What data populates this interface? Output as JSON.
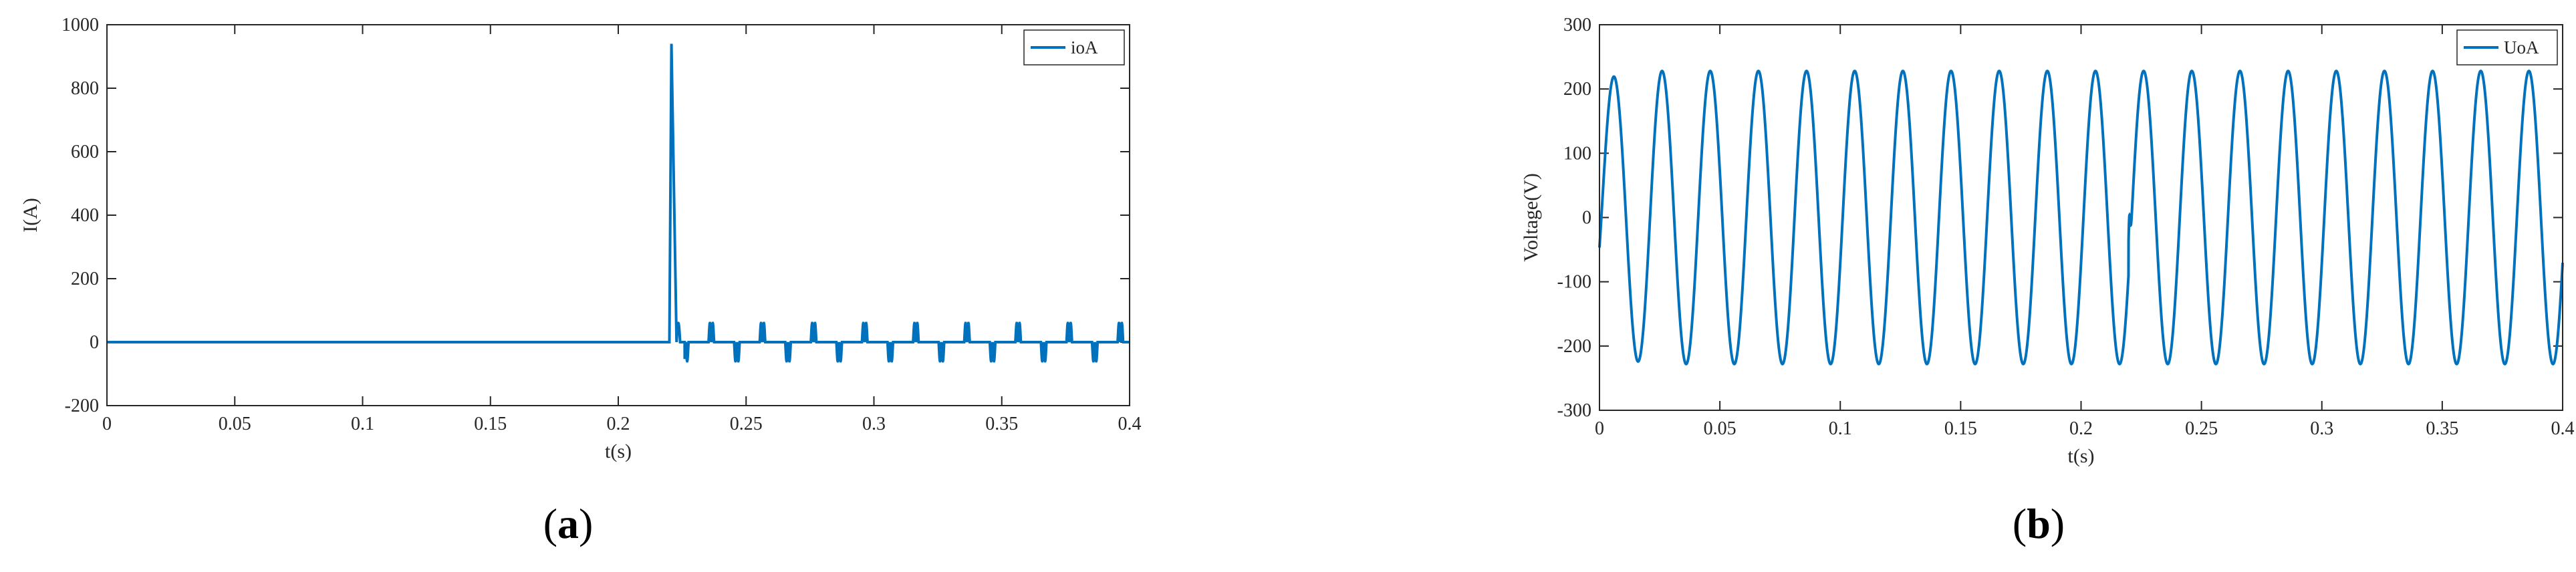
{
  "chart_data": [
    {
      "type": "line",
      "panel_label": "a",
      "xlabel": "t(s)",
      "ylabel": "I(A)",
      "xlim": [
        0,
        0.4
      ],
      "ylim": [
        -200,
        1000
      ],
      "xticks": [
        0,
        0.05,
        0.1,
        0.15,
        0.2,
        0.25,
        0.3,
        0.35,
        0.4
      ],
      "xtick_labels": [
        "0",
        "0.05",
        "0.1",
        "0.15",
        "0.2",
        "0.25",
        "0.3",
        "0.35",
        "0.4"
      ],
      "yticks": [
        -200,
        0,
        200,
        400,
        600,
        800,
        1000
      ],
      "ytick_labels": [
        "-200",
        "0",
        "200",
        "400",
        "600",
        "800",
        "1000"
      ],
      "legend_position": "top-right",
      "grid": false,
      "color": "#0072BD",
      "series": [
        {
          "name": "ioA",
          "description": "Zero until the fault at t=0.22 s, spike to about 940 A, then decays and oscillates between about -60 and +60 A with period 0.02 s",
          "fault_time": 0.22,
          "peak_value": 940,
          "post_fault_amplitude": 60,
          "period": 0.02
        }
      ]
    },
    {
      "type": "line",
      "panel_label": "b",
      "xlabel": "t(s)",
      "ylabel": "Voltage(V)",
      "xlim": [
        0,
        0.4
      ],
      "ylim": [
        -300,
        300
      ],
      "xticks": [
        0,
        0.05,
        0.1,
        0.15,
        0.2,
        0.25,
        0.3,
        0.35,
        0.4
      ],
      "xtick_labels": [
        "0",
        "0.05",
        "0.1",
        "0.15",
        "0.2",
        "0.25",
        "0.3",
        "0.35",
        "0.4"
      ],
      "yticks": [
        -300,
        -200,
        -100,
        0,
        100,
        200,
        300
      ],
      "ytick_labels": [
        "-300",
        "-200",
        "-100",
        "0",
        "100",
        "200",
        "300"
      ],
      "legend_position": "top-right",
      "grid": false,
      "color": "#0072BD",
      "series": [
        {
          "name": "UoA",
          "description": "Sinusoid of amplitude about 228 V with period 0.02 s (50 Hz), small startup transient, brief glitch near t=0.22 s",
          "amplitude": 228,
          "period": 0.02,
          "glitch_time": 0.22
        }
      ]
    }
  ]
}
